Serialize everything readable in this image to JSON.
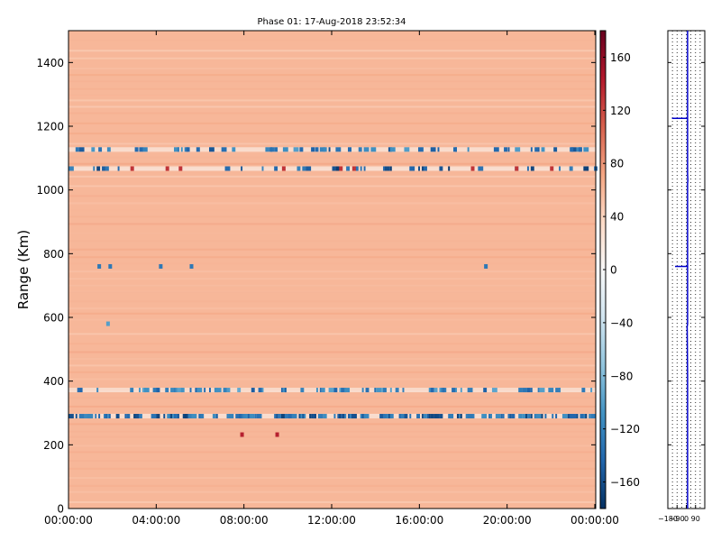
{
  "chart_data": [
    {
      "type": "heatmap",
      "title": "Phase 01: 17-Aug-2018 23:52:34",
      "xlabel": "",
      "ylabel": "Range (Km)",
      "x_ticks": [
        "00:00:00",
        "04:00:00",
        "08:00:00",
        "12:00:00",
        "16:00:00",
        "20:00:00",
        "00:00:00"
      ],
      "x_range_hours": [
        0,
        24
      ],
      "ylim": [
        0,
        1500
      ],
      "y_ticks": [
        0,
        200,
        400,
        600,
        800,
        1000,
        1200,
        1400
      ],
      "background_value": 60,
      "colorbar": {
        "colormap": "RdBu_r",
        "range": [
          -180,
          180
        ],
        "ticks": [
          160,
          120,
          80,
          40,
          0,
          -40,
          -80,
          -120,
          -160
        ]
      },
      "band_rows": [
        {
          "range_km": 290,
          "value": -140,
          "density": 0.9
        },
        {
          "range_km": 372,
          "value": -120,
          "density": 0.4
        },
        {
          "range_km": 1127,
          "value": -130,
          "density": 0.3
        },
        {
          "range_km": 1067,
          "value": -150,
          "density": 0.25
        }
      ],
      "features": [
        {
          "type": "scatter",
          "range_km": 760,
          "hours": [
            1.4,
            1.9,
            4.2,
            5.6,
            19.0
          ],
          "value": -130
        },
        {
          "type": "scatter",
          "range_km": 1067,
          "hours": [
            2.9,
            4.5,
            5.1,
            9.8,
            12.4,
            13.0,
            18.4,
            20.4,
            22.0
          ],
          "value": 130
        },
        {
          "type": "scatter",
          "range_km": 1127,
          "hours": [
            3.1,
            3.3,
            5.9,
            10.6,
            11.3,
            12.8,
            16.0,
            17.6,
            19.9,
            21.3,
            22.9,
            23.3
          ],
          "value": -140
        },
        {
          "type": "scatter",
          "range_km": 580,
          "hours": [
            1.8
          ],
          "value": -100
        },
        {
          "type": "scatter",
          "range_km": 232,
          "hours": [
            7.9,
            9.5
          ],
          "value": 140
        }
      ],
      "grid": false,
      "legend": "none"
    },
    {
      "type": "line",
      "title": "",
      "xlabel": "",
      "ylabel": "",
      "x_ticks": [
        "-180",
        "-90",
        "0",
        "90"
      ],
      "xlim": [
        -180,
        180
      ],
      "ylim": [
        0,
        1500
      ],
      "series": [
        {
          "color": "#0000cc",
          "points": [
            [
              12,
              0
            ],
            [
              12,
              200
            ],
            [
              12,
              355
            ],
            [
              12,
              420
            ],
            [
              9,
              560
            ],
            [
              8,
              570
            ],
            [
              12,
              580
            ],
            [
              12,
              760
            ],
            [
              -110,
              760
            ],
            [
              12,
              760
            ],
            [
              12,
              1020
            ],
            [
              15,
              1030
            ],
            [
              12,
              1050
            ],
            [
              12,
              1225
            ],
            [
              -140,
              1225
            ],
            [
              12,
              1225
            ],
            [
              12,
              1500
            ]
          ]
        }
      ],
      "vlines": [
        -135,
        -90,
        -45,
        0,
        45,
        90,
        135
      ],
      "grid": true,
      "legend": "none"
    }
  ]
}
